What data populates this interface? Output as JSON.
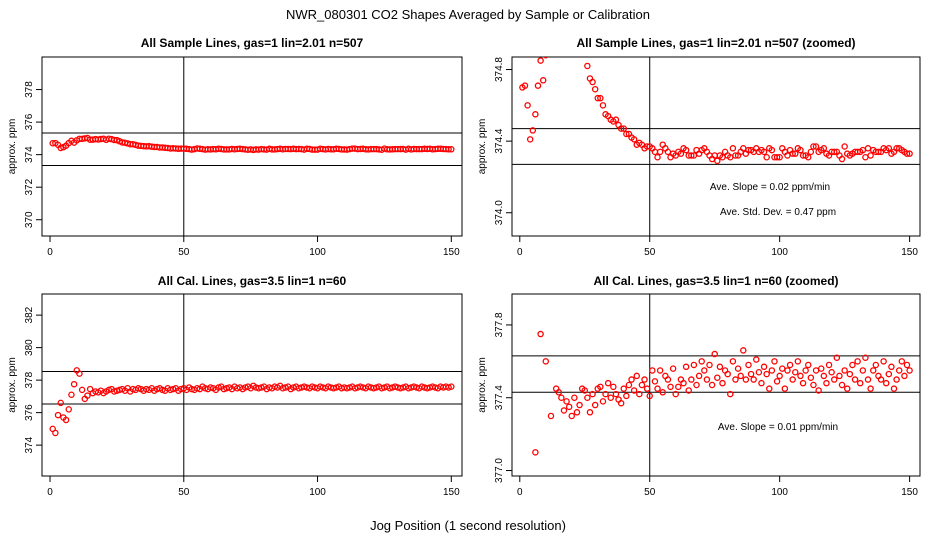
{
  "figure": {
    "title": "NWR_080301  CO2 Shapes Averaged by Sample or Calibration",
    "xlabel": "Jog Position (1 second resolution)"
  },
  "chart_data": [
    {
      "type": "scatter",
      "title": "All Sample Lines, gas=1 lin=2.01 n=507",
      "xlabel": "",
      "ylabel": "approx. ppm",
      "xlim": [
        -3,
        154
      ],
      "ylim": [
        369,
        380
      ],
      "xticks": [
        "0",
        "50",
        "100",
        "150"
      ],
      "yticks": [
        "370",
        "372",
        "374",
        "376",
        "378"
      ],
      "hlines": [
        373.33,
        375.33
      ],
      "vline": 50,
      "grid": false,
      "color": "#ff0000",
      "annotations": [],
      "x": [
        1,
        2,
        3,
        4,
        5,
        6,
        7,
        8,
        9,
        10,
        11,
        12,
        13,
        14,
        15,
        16,
        17,
        18,
        19,
        20,
        21,
        22,
        23,
        24,
        25,
        26,
        27,
        28,
        29,
        30,
        31,
        32,
        33,
        34,
        35,
        36,
        37,
        38,
        39,
        40,
        41,
        42,
        43,
        44,
        45,
        46,
        47,
        48,
        49,
        50,
        51,
        52,
        53,
        54,
        55,
        56,
        57,
        58,
        59,
        60,
        61,
        62,
        63,
        64,
        65,
        66,
        67,
        68,
        69,
        70,
        71,
        72,
        73,
        74,
        75,
        76,
        77,
        78,
        79,
        80,
        81,
        82,
        83,
        84,
        85,
        86,
        87,
        88,
        89,
        90,
        91,
        92,
        93,
        94,
        95,
        96,
        97,
        98,
        99,
        100,
        101,
        102,
        103,
        104,
        105,
        106,
        107,
        108,
        109,
        110,
        111,
        112,
        113,
        114,
        115,
        116,
        117,
        118,
        119,
        120,
        121,
        122,
        123,
        124,
        125,
        126,
        127,
        128,
        129,
        130,
        131,
        132,
        133,
        134,
        135,
        136,
        137,
        138,
        139,
        140,
        141,
        142,
        143,
        144,
        145,
        146,
        147,
        148,
        149,
        150
      ],
      "y": [
        374.7,
        374.71,
        374.6,
        374.41,
        374.46,
        374.55,
        374.71,
        374.85,
        374.74,
        374.88,
        374.97,
        374.97,
        375.0,
        375.02,
        374.92,
        374.92,
        374.95,
        374.93,
        374.96,
        374.98,
        374.91,
        374.98,
        374.95,
        374.9,
        374.89,
        374.82,
        374.75,
        374.73,
        374.69,
        374.64,
        374.64,
        374.6,
        374.55,
        374.54,
        374.52,
        374.51,
        374.52,
        374.49,
        374.47,
        374.47,
        374.44,
        374.44,
        374.42,
        374.41,
        374.38,
        374.39,
        374.38,
        374.36,
        374.37,
        374.37,
        374.36,
        374.34,
        374.31,
        374.34,
        374.38,
        374.36,
        374.34,
        374.31,
        374.33,
        374.32,
        374.34,
        374.33,
        374.36,
        374.35,
        374.32,
        374.32,
        374.32,
        374.35,
        374.33,
        374.35,
        374.36,
        374.34,
        374.32,
        374.3,
        374.32,
        374.29,
        374.32,
        374.31,
        374.34,
        374.32,
        374.31,
        374.36,
        374.32,
        374.32,
        374.34,
        374.36,
        374.33,
        374.35,
        374.35,
        374.34,
        374.36,
        374.34,
        374.35,
        374.34,
        374.31,
        374.36,
        374.35,
        374.31,
        374.31,
        374.31,
        374.36,
        374.34,
        374.32,
        374.35,
        374.33,
        374.33,
        374.36,
        374.35,
        374.32,
        374.32,
        374.31,
        374.34,
        374.37,
        374.37,
        374.34,
        374.35,
        374.36,
        374.33,
        374.32,
        374.34,
        374.34,
        374.34,
        374.32,
        374.3,
        374.37,
        374.33,
        374.32,
        374.33,
        374.34,
        374.34,
        374.34,
        374.35,
        374.31,
        374.36,
        374.32,
        374.35,
        374.34,
        374.34,
        374.34,
        374.36,
        374.35,
        374.36,
        374.33,
        374.34,
        374.36,
        374.36,
        374.35,
        374.34,
        374.33,
        374.33
      ]
    },
    {
      "type": "scatter",
      "title": "All Sample Lines, gas=1 lin=2.01 n=507 (zoomed)",
      "xlabel": "",
      "ylabel": "approx. ppm",
      "xlim": [
        -3,
        154
      ],
      "ylim": [
        373.87,
        374.87
      ],
      "xticks": [
        "0",
        "50",
        "100",
        "150"
      ],
      "yticks": [
        "374.0",
        "374.4",
        "374.8"
      ],
      "hlines": [
        374.27,
        374.47
      ],
      "vline": 50,
      "grid": false,
      "color": "#ff0000",
      "annotations": [
        {
          "label": "Ave. Slope =",
          "value": "0.02",
          "unit": "ppm/min"
        },
        {
          "label": "Ave. Std. Dev. =",
          "value": "0.47",
          "unit": "ppm"
        }
      ],
      "x": [
        1,
        2,
        3,
        4,
        5,
        6,
        7,
        8,
        9,
        10,
        11,
        12,
        13,
        14,
        15,
        16,
        17,
        18,
        19,
        20,
        21,
        22,
        23,
        24,
        25,
        26,
        27,
        28,
        29,
        30,
        31,
        32,
        33,
        34,
        35,
        36,
        37,
        38,
        39,
        40,
        41,
        42,
        43,
        44,
        45,
        46,
        47,
        48,
        49,
        50,
        51,
        52,
        53,
        54,
        55,
        56,
        57,
        58,
        59,
        60,
        61,
        62,
        63,
        64,
        65,
        66,
        67,
        68,
        69,
        70,
        71,
        72,
        73,
        74,
        75,
        76,
        77,
        78,
        79,
        80,
        81,
        82,
        83,
        84,
        85,
        86,
        87,
        88,
        89,
        90,
        91,
        92,
        93,
        94,
        95,
        96,
        97,
        98,
        99,
        100,
        101,
        102,
        103,
        104,
        105,
        106,
        107,
        108,
        109,
        110,
        111,
        112,
        113,
        114,
        115,
        116,
        117,
        118,
        119,
        120,
        121,
        122,
        123,
        124,
        125,
        126,
        127,
        128,
        129,
        130,
        131,
        132,
        133,
        134,
        135,
        136,
        137,
        138,
        139,
        140,
        141,
        142,
        143,
        144,
        145,
        146,
        147,
        148,
        149,
        150
      ],
      "y": [
        374.7,
        374.71,
        374.6,
        374.41,
        374.46,
        374.55,
        374.71,
        374.85,
        374.74,
        374.88,
        374.97,
        374.97,
        375.0,
        375.02,
        374.92,
        374.92,
        374.95,
        374.93,
        374.96,
        374.98,
        374.91,
        374.98,
        374.95,
        374.9,
        374.89,
        374.82,
        374.75,
        374.73,
        374.69,
        374.64,
        374.64,
        374.6,
        374.55,
        374.54,
        374.52,
        374.51,
        374.52,
        374.49,
        374.47,
        374.47,
        374.44,
        374.44,
        374.42,
        374.41,
        374.38,
        374.39,
        374.38,
        374.36,
        374.37,
        374.37,
        374.36,
        374.34,
        374.31,
        374.34,
        374.38,
        374.36,
        374.34,
        374.31,
        374.33,
        374.32,
        374.34,
        374.33,
        374.36,
        374.35,
        374.32,
        374.32,
        374.32,
        374.35,
        374.33,
        374.35,
        374.36,
        374.34,
        374.32,
        374.3,
        374.32,
        374.29,
        374.32,
        374.31,
        374.34,
        374.32,
        374.31,
        374.36,
        374.32,
        374.32,
        374.34,
        374.36,
        374.33,
        374.35,
        374.35,
        374.34,
        374.36,
        374.34,
        374.35,
        374.34,
        374.31,
        374.36,
        374.35,
        374.31,
        374.31,
        374.31,
        374.36,
        374.34,
        374.32,
        374.35,
        374.33,
        374.33,
        374.36,
        374.35,
        374.32,
        374.32,
        374.31,
        374.34,
        374.37,
        374.37,
        374.34,
        374.35,
        374.36,
        374.33,
        374.32,
        374.34,
        374.34,
        374.34,
        374.32,
        374.3,
        374.37,
        374.33,
        374.32,
        374.33,
        374.34,
        374.34,
        374.34,
        374.35,
        374.31,
        374.36,
        374.32,
        374.35,
        374.34,
        374.34,
        374.34,
        374.36,
        374.35,
        374.36,
        374.33,
        374.34,
        374.36,
        374.36,
        374.35,
        374.34,
        374.33,
        374.33
      ]
    },
    {
      "type": "scatter",
      "title": "All Cal. Lines, gas=3.5 lin=1 n=60",
      "xlabel": "",
      "ylabel": "approx. ppm",
      "xlim": [
        -3,
        154
      ],
      "ylim": [
        372.1,
        383.3
      ],
      "xticks": [
        "0",
        "50",
        "100",
        "150"
      ],
      "yticks": [
        "374",
        "376",
        "378",
        "380",
        "382"
      ],
      "hlines": [
        376.53,
        378.53
      ],
      "vline": 50,
      "grid": false,
      "color": "#ff0000",
      "annotations": [],
      "x": [
        1,
        2,
        3,
        4,
        5,
        6,
        7,
        8,
        9,
        10,
        11,
        12,
        13,
        14,
        15,
        16,
        17,
        18,
        19,
        20,
        21,
        22,
        23,
        24,
        25,
        26,
        27,
        28,
        29,
        30,
        31,
        32,
        33,
        34,
        35,
        36,
        37,
        38,
        39,
        40,
        41,
        42,
        43,
        44,
        45,
        46,
        47,
        48,
        49,
        50,
        51,
        52,
        53,
        54,
        55,
        56,
        57,
        58,
        59,
        60,
        61,
        62,
        63,
        64,
        65,
        66,
        67,
        68,
        69,
        70,
        71,
        72,
        73,
        74,
        75,
        76,
        77,
        78,
        79,
        80,
        81,
        82,
        83,
        84,
        85,
        86,
        87,
        88,
        89,
        90,
        91,
        92,
        93,
        94,
        95,
        96,
        97,
        98,
        99,
        100,
        101,
        102,
        103,
        104,
        105,
        106,
        107,
        108,
        109,
        110,
        111,
        112,
        113,
        114,
        115,
        116,
        117,
        118,
        119,
        120,
        121,
        122,
        123,
        124,
        125,
        126,
        127,
        128,
        129,
        130,
        131,
        132,
        133,
        134,
        135,
        136,
        137,
        138,
        139,
        140,
        141,
        142,
        143,
        144,
        145,
        146,
        147,
        148,
        149,
        150
      ],
      "y": [
        375.0,
        374.75,
        375.85,
        376.6,
        375.7,
        375.55,
        376.2,
        377.1,
        377.75,
        378.6,
        378.4,
        377.4,
        376.85,
        377.05,
        377.45,
        377.2,
        377.3,
        377.25,
        377.35,
        377.2,
        377.3,
        377.4,
        377.45,
        377.3,
        377.35,
        377.4,
        377.45,
        377.35,
        377.5,
        377.3,
        377.45,
        377.4,
        377.5,
        377.45,
        377.35,
        377.45,
        377.4,
        377.5,
        377.35,
        377.45,
        377.5,
        377.4,
        377.35,
        377.5,
        377.4,
        377.45,
        377.5,
        377.35,
        377.45,
        377.5,
        377.4,
        377.55,
        377.45,
        377.4,
        377.5,
        377.45,
        377.6,
        377.5,
        377.45,
        377.55,
        377.5,
        377.4,
        377.55,
        377.6,
        377.45,
        377.5,
        377.55,
        377.45,
        377.6,
        377.5,
        377.55,
        377.45,
        377.55,
        377.6,
        377.5,
        377.65,
        377.55,
        377.5,
        377.55,
        377.6,
        377.45,
        377.55,
        377.5,
        377.6,
        377.55,
        377.65,
        377.5,
        377.55,
        377.6,
        377.45,
        377.55,
        377.6,
        377.5,
        377.55,
        377.6,
        377.55,
        377.5,
        377.6,
        377.55,
        377.5,
        377.6,
        377.55,
        377.5,
        377.6,
        377.55,
        377.5,
        377.55,
        377.6,
        377.5,
        377.55,
        377.5,
        377.55,
        377.6,
        377.5,
        377.55,
        377.6,
        377.55,
        377.5,
        377.6,
        377.55,
        377.5,
        377.55,
        377.6,
        377.5,
        377.55,
        377.6,
        377.5,
        377.55,
        377.6,
        377.55,
        377.5,
        377.55,
        377.6,
        377.5,
        377.55,
        377.6,
        377.55,
        377.5,
        377.6,
        377.55,
        377.5,
        377.55,
        377.6,
        377.55,
        377.5,
        377.6,
        377.55,
        377.6,
        377.55,
        377.6
      ]
    },
    {
      "type": "scatter",
      "title": "All Cal. Lines, gas=3.5 lin=1 n=60 (zoomed)",
      "xlabel": "",
      "ylabel": "approx. ppm",
      "xlim": [
        -3,
        154
      ],
      "ylim": [
        376.97,
        377.97
      ],
      "xticks": [
        "0",
        "50",
        "100",
        "150"
      ],
      "yticks": [
        "377.0",
        "377.4",
        "377.8"
      ],
      "hlines": [
        377.43,
        377.63
      ],
      "vline": 50,
      "grid": false,
      "color": "#ff0000",
      "annotations": [
        {
          "label": "Ave. Slope =",
          "value": "0.01",
          "unit": "ppm/min"
        }
      ],
      "x": [
        6,
        8,
        10,
        12,
        14,
        15,
        16,
        17,
        18,
        19,
        20,
        21,
        22,
        23,
        24,
        25,
        26,
        27,
        28,
        29,
        30,
        31,
        32,
        33,
        34,
        35,
        36,
        37,
        38,
        39,
        40,
        41,
        42,
        43,
        44,
        45,
        46,
        47,
        48,
        49,
        50,
        51,
        52,
        53,
        54,
        55,
        56,
        57,
        58,
        59,
        60,
        61,
        62,
        63,
        64,
        65,
        66,
        67,
        68,
        69,
        70,
        71,
        72,
        73,
        74,
        75,
        76,
        77,
        78,
        79,
        80,
        81,
        82,
        83,
        84,
        85,
        86,
        87,
        88,
        89,
        90,
        91,
        92,
        93,
        94,
        95,
        96,
        97,
        98,
        99,
        100,
        101,
        102,
        103,
        104,
        105,
        106,
        107,
        108,
        109,
        110,
        111,
        112,
        113,
        114,
        115,
        116,
        117,
        118,
        119,
        120,
        121,
        122,
        123,
        124,
        125,
        126,
        127,
        128,
        129,
        130,
        131,
        132,
        133,
        134,
        135,
        136,
        137,
        138,
        139,
        140,
        141,
        142,
        143,
        144,
        145,
        146,
        147,
        148,
        149,
        150
      ],
      "y": [
        377.1,
        377.75,
        377.6,
        377.3,
        377.45,
        377.43,
        377.4,
        377.33,
        377.38,
        377.35,
        377.3,
        377.4,
        377.32,
        377.36,
        377.45,
        377.44,
        377.4,
        377.32,
        377.42,
        377.36,
        377.45,
        377.46,
        377.38,
        377.42,
        377.48,
        377.4,
        377.46,
        377.42,
        377.39,
        377.37,
        377.45,
        377.41,
        377.47,
        377.5,
        377.44,
        377.52,
        377.42,
        377.47,
        377.5,
        377.45,
        377.41,
        377.55,
        377.49,
        377.45,
        377.55,
        377.43,
        377.52,
        377.5,
        377.46,
        377.56,
        377.42,
        377.46,
        377.5,
        377.48,
        377.57,
        377.44,
        377.5,
        377.58,
        377.47,
        377.52,
        377.6,
        377.55,
        377.5,
        377.58,
        377.47,
        377.64,
        377.51,
        377.57,
        377.48,
        377.55,
        377.53,
        377.42,
        377.6,
        377.5,
        377.56,
        377.52,
        377.66,
        377.5,
        377.58,
        377.53,
        377.5,
        377.61,
        377.54,
        377.48,
        377.57,
        377.53,
        377.45,
        377.55,
        377.6,
        377.49,
        377.52,
        377.56,
        377.45,
        377.55,
        377.58,
        377.5,
        377.54,
        377.6,
        377.52,
        377.48,
        377.55,
        377.58,
        377.51,
        377.47,
        377.55,
        377.44,
        377.56,
        377.52,
        377.48,
        377.58,
        377.54,
        377.5,
        377.62,
        377.52,
        377.47,
        377.55,
        377.45,
        377.53,
        377.58,
        377.5,
        377.6,
        377.48,
        377.55,
        377.62,
        377.5,
        377.45,
        377.55,
        377.58,
        377.52,
        377.5,
        377.6,
        377.48,
        377.53,
        377.57,
        377.45,
        377.5,
        377.55,
        377.6,
        377.52,
        377.58,
        377.55
      ]
    }
  ]
}
